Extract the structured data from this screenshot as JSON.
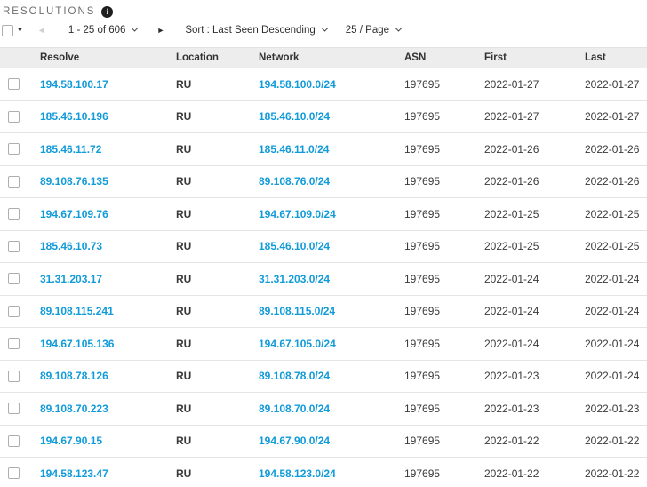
{
  "header": {
    "title": "RESOLUTIONS",
    "info_icon_glyph": "i"
  },
  "toolbar": {
    "select_caret": "▼",
    "prev_icon": "◄",
    "next_icon": "►",
    "range_label": "1 - 25 of 606",
    "sort_label": "Sort : Last Seen Descending",
    "pagesize_label": "25 / Page"
  },
  "table": {
    "columns": [
      "Resolve",
      "Location",
      "Network",
      "ASN",
      "First",
      "Last"
    ],
    "rows": [
      {
        "resolve": "194.58.100.17",
        "location": "RU",
        "network": "194.58.100.0/24",
        "asn": "197695",
        "first": "2022-01-27",
        "last": "2022-01-27"
      },
      {
        "resolve": "185.46.10.196",
        "location": "RU",
        "network": "185.46.10.0/24",
        "asn": "197695",
        "first": "2022-01-27",
        "last": "2022-01-27"
      },
      {
        "resolve": "185.46.11.72",
        "location": "RU",
        "network": "185.46.11.0/24",
        "asn": "197695",
        "first": "2022-01-26",
        "last": "2022-01-26"
      },
      {
        "resolve": "89.108.76.135",
        "location": "RU",
        "network": "89.108.76.0/24",
        "asn": "197695",
        "first": "2022-01-26",
        "last": "2022-01-26"
      },
      {
        "resolve": "194.67.109.76",
        "location": "RU",
        "network": "194.67.109.0/24",
        "asn": "197695",
        "first": "2022-01-25",
        "last": "2022-01-25"
      },
      {
        "resolve": "185.46.10.73",
        "location": "RU",
        "network": "185.46.10.0/24",
        "asn": "197695",
        "first": "2022-01-25",
        "last": "2022-01-25"
      },
      {
        "resolve": "31.31.203.17",
        "location": "RU",
        "network": "31.31.203.0/24",
        "asn": "197695",
        "first": "2022-01-24",
        "last": "2022-01-24"
      },
      {
        "resolve": "89.108.115.241",
        "location": "RU",
        "network": "89.108.115.0/24",
        "asn": "197695",
        "first": "2022-01-24",
        "last": "2022-01-24"
      },
      {
        "resolve": "194.67.105.136",
        "location": "RU",
        "network": "194.67.105.0/24",
        "asn": "197695",
        "first": "2022-01-24",
        "last": "2022-01-24"
      },
      {
        "resolve": "89.108.78.126",
        "location": "RU",
        "network": "89.108.78.0/24",
        "asn": "197695",
        "first": "2022-01-23",
        "last": "2022-01-24"
      },
      {
        "resolve": "89.108.70.223",
        "location": "RU",
        "network": "89.108.70.0/24",
        "asn": "197695",
        "first": "2022-01-23",
        "last": "2022-01-23"
      },
      {
        "resolve": "194.67.90.15",
        "location": "RU",
        "network": "194.67.90.0/24",
        "asn": "197695",
        "first": "2022-01-22",
        "last": "2022-01-22"
      },
      {
        "resolve": "194.58.123.47",
        "location": "RU",
        "network": "194.58.123.0/24",
        "asn": "197695",
        "first": "2022-01-22",
        "last": "2022-01-22"
      }
    ]
  },
  "colors": {
    "link_blue": "#119bd9",
    "header_bg": "#ededed",
    "title_grey": "#6e6e6e",
    "separator": "#e4e4e4"
  }
}
